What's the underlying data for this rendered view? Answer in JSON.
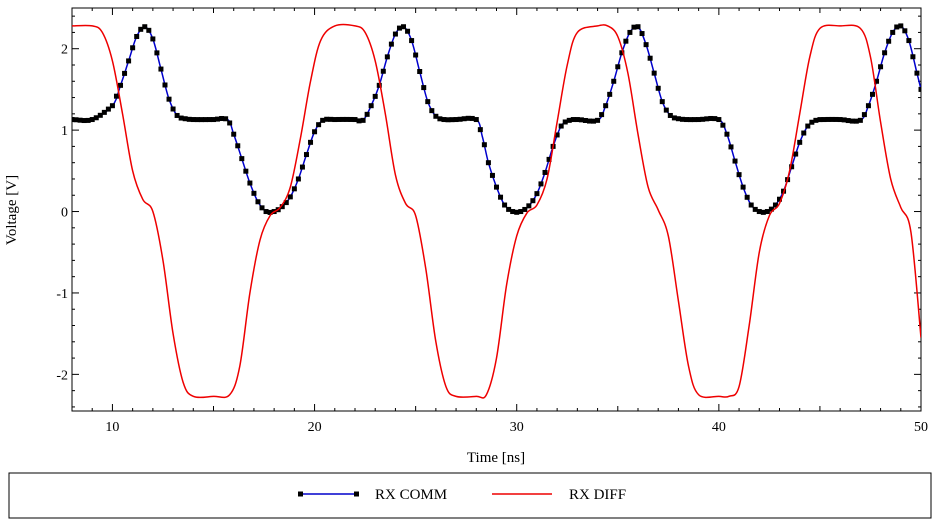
{
  "chart_data": {
    "type": "line",
    "xlabel": "Time [ns]",
    "ylabel": "Voltage [V]",
    "xlim": [
      8,
      50
    ],
    "ylim": [
      -2.45,
      2.5
    ],
    "xticks": [
      10,
      20,
      30,
      40,
      50
    ],
    "yticks": [
      -2,
      -1,
      0,
      1,
      2
    ],
    "grid": false,
    "legend_position": "bottom",
    "series": [
      {
        "name": "RX COMM",
        "color": "#0000cc",
        "marker_color": "#000000",
        "marker": "square",
        "x": [
          8.0,
          9.0,
          10.0,
          10.4,
          10.8,
          11.2,
          11.6,
          12.0,
          12.4,
          12.8,
          13.2,
          13.6,
          14.0,
          15.0,
          15.7,
          16.0,
          16.4,
          16.8,
          17.2,
          17.6,
          18.0,
          18.4,
          18.8,
          19.2,
          19.6,
          20.0,
          20.4,
          21.0,
          22.0,
          22.4,
          22.8,
          23.2,
          23.6,
          24.0,
          24.4,
          24.8,
          25.2,
          25.6,
          26.0,
          26.4,
          27.0,
          28.0,
          28.3,
          28.6,
          29.0,
          29.4,
          29.8,
          30.2,
          30.6,
          31.0,
          31.4,
          31.8,
          32.2,
          32.6,
          33.0,
          34.0,
          34.4,
          34.8,
          35.2,
          35.6,
          36.0,
          36.4,
          36.8,
          37.2,
          37.6,
          38.0,
          38.4,
          39.0,
          40.0,
          40.4,
          40.8,
          41.2,
          41.6,
          42.0,
          42.4,
          42.8,
          43.2,
          43.6,
          44.0,
          44.4,
          44.8,
          45.2,
          46.0,
          47.0,
          47.4,
          47.8,
          48.2,
          48.6,
          49.0,
          49.4,
          49.8,
          50.0
        ],
        "y": [
          1.13,
          1.13,
          1.3,
          1.55,
          1.85,
          2.15,
          2.27,
          2.12,
          1.75,
          1.38,
          1.18,
          1.14,
          1.13,
          1.13,
          1.13,
          0.95,
          0.65,
          0.35,
          0.12,
          0.0,
          0.0,
          0.06,
          0.18,
          0.4,
          0.7,
          0.98,
          1.12,
          1.13,
          1.13,
          1.12,
          1.3,
          1.55,
          1.9,
          2.18,
          2.27,
          2.1,
          1.72,
          1.35,
          1.17,
          1.13,
          1.13,
          1.13,
          0.92,
          0.6,
          0.3,
          0.08,
          0.0,
          0.0,
          0.07,
          0.22,
          0.48,
          0.8,
          1.05,
          1.12,
          1.13,
          1.12,
          1.3,
          1.6,
          1.95,
          2.2,
          2.27,
          2.05,
          1.7,
          1.35,
          1.18,
          1.14,
          1.13,
          1.13,
          1.13,
          0.95,
          0.62,
          0.3,
          0.08,
          0.0,
          0.0,
          0.08,
          0.25,
          0.55,
          0.85,
          1.05,
          1.12,
          1.13,
          1.13,
          1.12,
          1.3,
          1.6,
          1.95,
          2.2,
          2.28,
          2.1,
          1.7,
          1.5
        ]
      },
      {
        "name": "RX DIFF",
        "color": "#ee0000",
        "marker": "none",
        "x": [
          8.0,
          9.0,
          9.5,
          10.0,
          10.5,
          11.0,
          11.5,
          12.0,
          12.5,
          13.0,
          13.5,
          14.0,
          15.0,
          15.8,
          16.3,
          16.8,
          17.3,
          17.8,
          18.3,
          18.8,
          19.3,
          19.8,
          20.3,
          21.0,
          22.0,
          22.5,
          23.0,
          23.5,
          24.0,
          24.5,
          25.0,
          25.5,
          26.0,
          26.5,
          27.0,
          28.0,
          28.5,
          29.0,
          29.5,
          30.0,
          30.5,
          31.0,
          31.5,
          32.0,
          32.5,
          33.0,
          34.0,
          34.5,
          35.0,
          35.5,
          36.0,
          36.5,
          37.0,
          37.5,
          38.0,
          38.5,
          39.0,
          40.0,
          40.5,
          41.0,
          41.5,
          42.0,
          42.5,
          43.0,
          43.5,
          44.0,
          44.5,
          45.0,
          46.0,
          47.0,
          47.5,
          48.0,
          48.5,
          49.0,
          49.5,
          50.0
        ],
        "y": [
          2.28,
          2.28,
          2.2,
          1.85,
          1.2,
          0.5,
          0.15,
          0.0,
          -0.6,
          -1.5,
          -2.1,
          -2.27,
          -2.27,
          -2.25,
          -1.9,
          -1.0,
          -0.35,
          -0.05,
          0.05,
          0.3,
          0.9,
          1.6,
          2.1,
          2.28,
          2.28,
          2.2,
          1.85,
          1.2,
          0.45,
          0.1,
          -0.05,
          -0.7,
          -1.6,
          -2.15,
          -2.27,
          -2.27,
          -2.25,
          -1.8,
          -0.9,
          -0.3,
          -0.02,
          0.08,
          0.4,
          1.1,
          1.8,
          2.2,
          2.28,
          2.28,
          2.15,
          1.7,
          0.95,
          0.3,
          0.02,
          -0.3,
          -1.1,
          -1.9,
          -2.25,
          -2.27,
          -2.27,
          -2.15,
          -1.4,
          -0.5,
          -0.05,
          0.1,
          0.5,
          1.2,
          1.9,
          2.25,
          2.28,
          2.25,
          1.9,
          1.1,
          0.4,
          0.05,
          -0.25,
          -1.55
        ]
      }
    ]
  }
}
